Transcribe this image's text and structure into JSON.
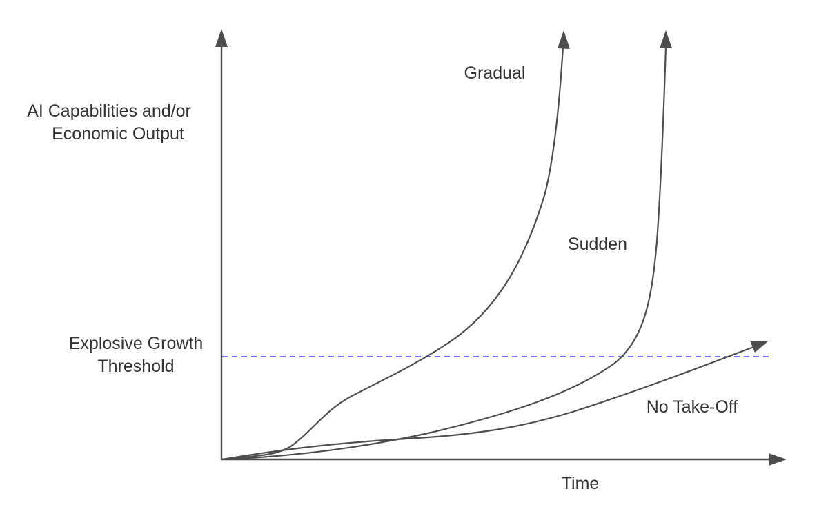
{
  "labels": {
    "y_axis_line1": "AI Capabilities and/or",
    "y_axis_line2": "Economic Output",
    "x_axis": "Time",
    "threshold_line1": "Explosive Growth",
    "threshold_line2": "Threshold",
    "gradual": "Gradual",
    "sudden": "Sudden",
    "no_takeoff": "No Take-Off"
  },
  "colors": {
    "curves": "#4d4d4d",
    "threshold": "#3a3af0",
    "text": "#333333"
  }
}
